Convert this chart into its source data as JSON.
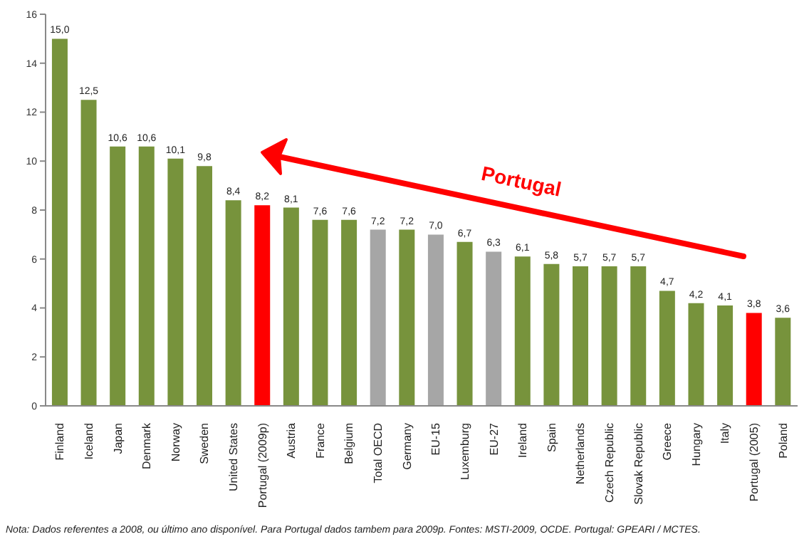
{
  "chart_data": {
    "type": "bar",
    "categories": [
      "Finland",
      "Iceland",
      "Japan",
      "Denmark",
      "Norway",
      "Sweden",
      "United States",
      "Portugal (2009p)",
      "Austria",
      "France",
      "Belgium",
      "Total OECD",
      "Germany",
      "EU-15",
      "Luxemburg",
      "EU-27",
      "Ireland",
      "Spain",
      "Netherlands",
      "Czech Republic",
      "Slovak Republic",
      "Greece",
      "Hungary",
      "Italy",
      "Portugal (2005)",
      "Poland"
    ],
    "values": [
      15.0,
      12.5,
      10.6,
      10.6,
      10.1,
      9.8,
      8.4,
      8.2,
      8.1,
      7.6,
      7.6,
      7.2,
      7.2,
      7.0,
      6.7,
      6.3,
      6.1,
      5.8,
      5.7,
      5.7,
      5.7,
      4.7,
      4.2,
      4.1,
      3.8,
      3.6
    ],
    "value_labels": [
      "15,0",
      "12,5",
      "10,6",
      "10,6",
      "10,1",
      "9,8",
      "8,4",
      "8,2",
      "8,1",
      "7,6",
      "7,6",
      "7,2",
      "7,2",
      "7,0",
      "6,7",
      "6,3",
      "6,1",
      "5,8",
      "5,7",
      "5,7",
      "5,7",
      "4,7",
      "4,2",
      "4,1",
      "3,8",
      "3,6"
    ],
    "colors": [
      "#77933c",
      "#77933c",
      "#77933c",
      "#77933c",
      "#77933c",
      "#77933c",
      "#77933c",
      "#ff0000",
      "#77933c",
      "#77933c",
      "#77933c",
      "#a6a6a6",
      "#77933c",
      "#a6a6a6",
      "#77933c",
      "#a6a6a6",
      "#77933c",
      "#77933c",
      "#77933c",
      "#77933c",
      "#77933c",
      "#77933c",
      "#77933c",
      "#77933c",
      "#ff0000",
      "#77933c"
    ],
    "ylim": [
      0,
      16
    ],
    "yticks": [
      0,
      2,
      4,
      6,
      8,
      10,
      12,
      14,
      16
    ],
    "grid": false,
    "annotations": [
      "Portugal",
      "Nota: Dados referentes a 2008, ou último ano disponível. Para Portugal dados tambem para 2009p. Fontes: MSTI-2009, OCDE. Portugal: GPEARI / MCTES."
    ]
  }
}
